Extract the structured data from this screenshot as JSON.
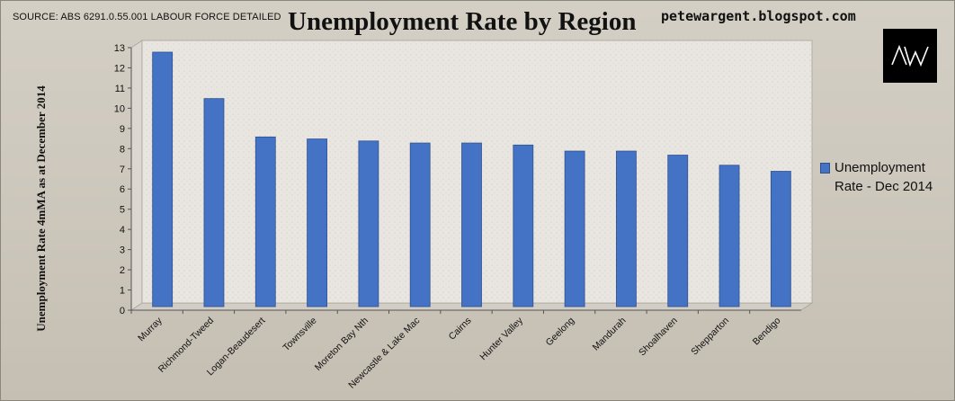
{
  "source_note": "SOURCE: ABS 6291.0.55.001 LABOUR FORCE DETAILED",
  "blog": "petewargent.blogspot.com",
  "logo_text": "AW",
  "colors": {
    "bar": "#4472c4",
    "bar_edge": "#2f528f",
    "plot_bg": "#e9e6e1"
  },
  "chart_data": {
    "type": "bar",
    "title": "Unemployment Rate by Region",
    "ylabel": "Unemployment Rate 4mMA as at December 2014",
    "xlabel": "",
    "ylim": [
      0,
      13
    ],
    "yticks": [
      0,
      1,
      2,
      3,
      4,
      5,
      6,
      7,
      8,
      9,
      10,
      11,
      12,
      13
    ],
    "grid": false,
    "legend": "right",
    "categories": [
      "Murray",
      "Richmond-Tweed",
      "Logan-Beaudesert",
      "Townsville",
      "Moreton Bay Nth",
      "Newcastle & Lake Mac",
      "Cairns",
      "Hunter Valley",
      "Geelong",
      "Mandurah",
      "Shoalhaven",
      "Shepparton",
      "Bendigo"
    ],
    "series": [
      {
        "name": "Unemployment Rate - Dec 2014",
        "values": [
          12.6,
          10.3,
          8.4,
          8.3,
          8.2,
          8.1,
          8.1,
          8.0,
          7.7,
          7.7,
          7.5,
          7.0,
          6.7
        ]
      }
    ]
  }
}
